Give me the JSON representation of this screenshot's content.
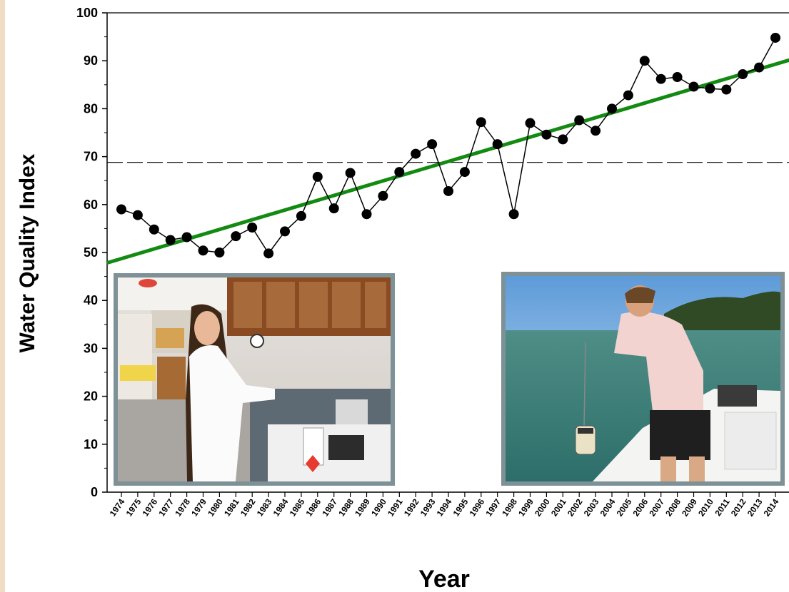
{
  "chart_data": {
    "type": "line",
    "xlabel": "Year",
    "ylabel": "Water Quality Index",
    "ylim": [
      0,
      100
    ],
    "yticks": [
      "0",
      "10",
      "20",
      "30",
      "40",
      "50",
      "60",
      "70",
      "80",
      "90",
      "100"
    ],
    "x": [
      "1974",
      "1975",
      "1976",
      "1977",
      "1978",
      "1979",
      "1980",
      "1981",
      "1982",
      "1983",
      "1984",
      "1985",
      "1986",
      "1987",
      "1988",
      "1989",
      "1990",
      "1991",
      "1992",
      "1993",
      "1994",
      "1995",
      "1996",
      "1997",
      "1998",
      "1999",
      "2000",
      "2001",
      "2002",
      "2003",
      "2004",
      "2005",
      "2006",
      "2007",
      "2008",
      "2009",
      "2010",
      "2011",
      "2012",
      "2013",
      "2014"
    ],
    "series": [
      {
        "values": [
          59,
          57.8,
          54.8,
          52.6,
          53.2,
          50.4,
          50,
          53.4,
          55.2,
          49.8,
          54.4,
          57.6,
          65.8,
          59.2,
          66.6,
          58,
          61.8,
          66.8,
          70.6,
          72.6,
          62.8,
          66.8,
          77.2,
          72.6,
          58,
          77,
          74.6,
          73.6,
          77.6,
          75.4,
          80,
          82.8,
          90,
          86.2,
          86.6,
          84.6,
          84.2,
          84,
          87.2,
          88.6,
          94.8
        ],
        "color": "#000000",
        "marker": "circle"
      }
    ],
    "trendline": {
      "start": [
        1973.1,
        47.8
      ],
      "end": [
        2014.9,
        90.2
      ],
      "color": "#138a12"
    },
    "reference_line": {
      "y": 68.8,
      "style": "dashed",
      "color": "#000000"
    },
    "grid": false
  },
  "photos": [
    {
      "name": "lab-photo",
      "subject": "lab technician with glassware"
    },
    {
      "name": "field-photo",
      "subject": "person sampling water from boat"
    }
  ],
  "colors": {
    "trend": "#138a12",
    "frame": "#7d9196",
    "sidebar": "#f1dcc4"
  }
}
